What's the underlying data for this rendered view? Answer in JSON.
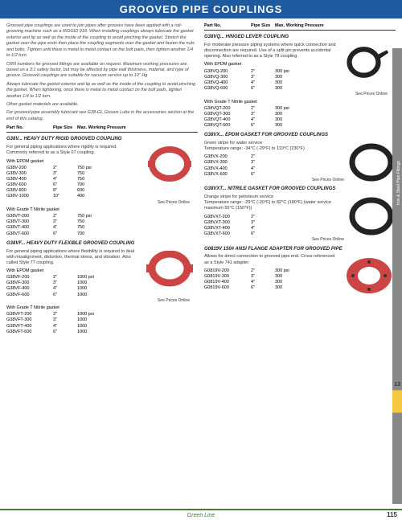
{
  "header": "GROOVED PIPE COUPLINGS",
  "intro": {
    "p1": "Grooved pipe couplings are used to join pipes after grooves have been applied with a roll-grooving machine such as a RIDGID 918. When installing couplings always lubricate the gasket exterior and lip as well as the inside of the coupling to avoid pinching the gasket. Stretch the gasket over the pipe ends then place the coupling segments over the gasket and fasten the nuts and bolts. Tighten until there is metal to metal contact on the bolt pads, then tighten another 1/4 to 1/2 turn.",
    "p2": "CRN numbers for grooved fittings are available on request. Maximum working pressures are based on a 3:1 safety factor, but may be affected by pipe wall thickness, material, and type of groove. Grooved couplings are suitable for vacuum service up to 10\" Hg",
    "p3": "Always lubricate the gasket exterior and lip as well as the inside of the coupling to avoid pinching the gasket. When tightening, once there is metal to metal contact on the bolt pads, tighten another 1/4 to 1/2 turn.",
    "p4": "Other gasket materials are available.",
    "p5": "For grooved pipe assembly lubricant see G38-GL Groove Lube in the accessories section at the end of this catalog."
  },
  "colheaders": {
    "partno": "Part No.",
    "size": "Pipe Size",
    "pressure": "Max. Working Pressure"
  },
  "g38v": {
    "title": "G38V... HEAVY DUTY RIGID GROOVED COUPLING",
    "desc": "For general piping applications where rigidity is required. Commonly referred to as a Style 07 coupling.",
    "sub1": "With EPDM gasket",
    "rows1": [
      {
        "pn": "G38V-200",
        "sz": "2\"",
        "pr": "750 psi"
      },
      {
        "pn": "G38V-300",
        "sz": "3\"",
        "pr": "750"
      },
      {
        "pn": "G38V-400",
        "sz": "4\"",
        "pr": "750"
      },
      {
        "pn": "G38V-600",
        "sz": "6\"",
        "pr": "700"
      },
      {
        "pn": "G38V-800",
        "sz": "8\"",
        "pr": "600"
      },
      {
        "pn": "G38V-1000",
        "sz": "10\"",
        "pr": "400"
      }
    ],
    "sub2": "With Grade T Nitrile gasket",
    "rows2": [
      {
        "pn": "G38VT-200",
        "sz": "2\"",
        "pr": "750 psi"
      },
      {
        "pn": "G38VT-300",
        "sz": "3\"",
        "pr": "750"
      },
      {
        "pn": "G38VT-400",
        "sz": "4\"",
        "pr": "750"
      },
      {
        "pn": "G38VT-600",
        "sz": "6\"",
        "pr": "700"
      }
    ]
  },
  "g38vf": {
    "title": "G38VF... HEAVY DUTY FLEXIBLE GROOVED COUPLING",
    "desc": "For general piping applications where flexibility is required to deal with misalignment, distortion, thermal stress, and vibration. Also called Style 77 coupling.",
    "sub1": "With EPDM gasket",
    "rows1": [
      {
        "pn": "G38VF-200",
        "sz": "2\"",
        "pr": "1000 psi"
      },
      {
        "pn": "G38VF-300",
        "sz": "3\"",
        "pr": "1000"
      },
      {
        "pn": "G38VF-400",
        "sz": "4\"",
        "pr": "1000"
      },
      {
        "pn": "G38VF-600",
        "sz": "6\"",
        "pr": "1000"
      }
    ],
    "sub2": "With Grade T Nitrile gasket",
    "rows2": [
      {
        "pn": "G38VFT-200",
        "sz": "2\"",
        "pr": "1000 psi"
      },
      {
        "pn": "G38VFT-300",
        "sz": "3\"",
        "pr": "1000"
      },
      {
        "pn": "G38VFT-400",
        "sz": "4\"",
        "pr": "1000"
      },
      {
        "pn": "G38VFT-600",
        "sz": "6\"",
        "pr": "1000"
      }
    ]
  },
  "g38vq": {
    "title": "G38VQ... HINGED LEVER COUPLING",
    "desc": "For moderate pressure piping systems where quick connection and disconnection are required. Use of a split pin prevents accidental opening. Also referred to as a Style 78 coupling.",
    "sub1": "With EPDM gasket",
    "rows1": [
      {
        "pn": "G38VQ-200",
        "sz": "2\"",
        "pr": "300 psi"
      },
      {
        "pn": "G38VQ-300",
        "sz": "3\"",
        "pr": "300"
      },
      {
        "pn": "G38VQ-400",
        "sz": "4\"",
        "pr": "300"
      },
      {
        "pn": "G38VQ-600",
        "sz": "6\"",
        "pr": "300"
      }
    ],
    "sub2": "With Grade T Nitrile gasket",
    "rows2": [
      {
        "pn": "G38VQT-200",
        "sz": "2\"",
        "pr": "300 psi"
      },
      {
        "pn": "G38VQT-300",
        "sz": "3\"",
        "pr": "300"
      },
      {
        "pn": "G38VQT-400",
        "sz": "4\"",
        "pr": "300"
      },
      {
        "pn": "G38VQT-600",
        "sz": "6\"",
        "pr": "300"
      }
    ]
  },
  "g38vx": {
    "title": "G38VX... EPDM GASKET FOR GROOVED COUPLINGS",
    "desc": "Green stripe for water service\nTemperature range: -34°C (-29°F) to 110°C (230°F)",
    "rows": [
      {
        "pn": "G38VX-200",
        "sz": "2\""
      },
      {
        "pn": "G38VX-300",
        "sz": "3\""
      },
      {
        "pn": "G38VX-400",
        "sz": "4\""
      },
      {
        "pn": "G38VX-600",
        "sz": "6\""
      }
    ]
  },
  "g38vxt": {
    "title": "G38VXT... NITRILE GASKET FOR GROOVED COUPLINGS",
    "desc": "Orange stripe for petroleum service\nTemperature range: -29°C (-20°F) to 82°C (180°F) (water service maximum 65°C (150°F))",
    "rows": [
      {
        "pn": "G38VXT-200",
        "sz": "2\""
      },
      {
        "pn": "G38VXT-300",
        "sz": "3\""
      },
      {
        "pn": "G38VXT-400",
        "sz": "4\""
      },
      {
        "pn": "G38VXT-600",
        "sz": "6\""
      }
    ]
  },
  "g0819v": {
    "title": "G0819V 150# ANSI FLANGE ADAPTER FOR GROOVED PIPE",
    "desc": "Allows for direct connection to grooved pipe end. Cross referenced as a Style 741 adapter.",
    "rows": [
      {
        "pn": "G0819V-200",
        "sz": "2\"",
        "pr": "300 psi"
      },
      {
        "pn": "G0819V-300",
        "sz": "3\"",
        "pr": "300"
      },
      {
        "pn": "G0819V-400",
        "sz": "4\"",
        "pr": "300"
      },
      {
        "pn": "G0819V-600",
        "sz": "6\"",
        "pr": "300"
      }
    ]
  },
  "priceNote": "See Prices Online",
  "sidebarText": "Iron & Steel Pipe Fittings",
  "sidebarNum": "13",
  "brand": "Green Line",
  "pageNum": "115"
}
